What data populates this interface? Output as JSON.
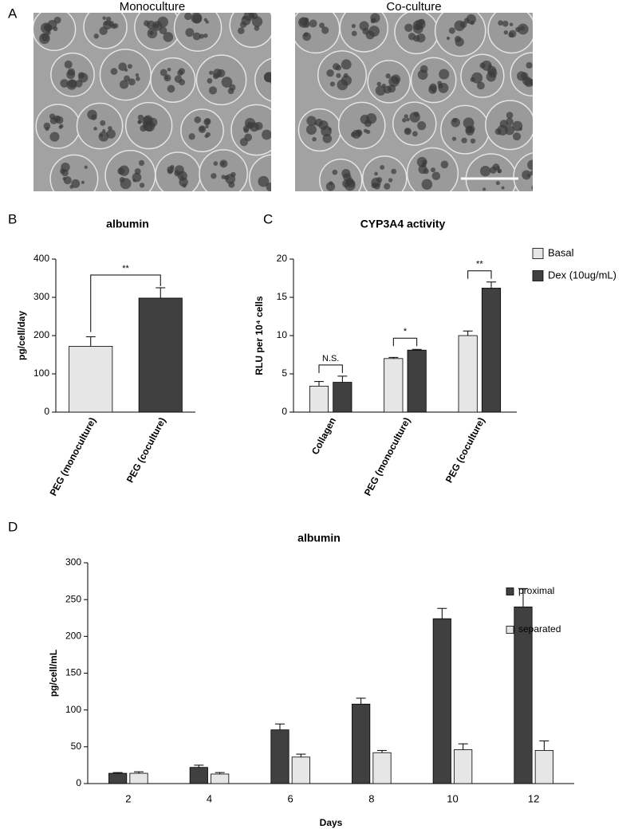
{
  "chart_data": [
    {
      "type": "image",
      "panel": "A",
      "labels": [
        "Monoculture",
        "Co-culture"
      ]
    },
    {
      "type": "bar",
      "panel": "B",
      "title": "albumin",
      "y_label": "pg/cell/day",
      "categories": [
        "PEG (monoculture)",
        "PEG (coculture)"
      ],
      "values": [
        172,
        298
      ],
      "errors": [
        25,
        27
      ],
      "colors": [
        "#e6e6e6",
        "#404040"
      ],
      "significance": "**",
      "ylim": [
        0,
        400
      ],
      "yticks": [
        0,
        100,
        200,
        300,
        400
      ]
    },
    {
      "type": "bar",
      "panel": "C",
      "title": "CYP3A4 activity",
      "y_label": "RLU per 10⁴ cells",
      "categories": [
        "Collagen",
        "PEG (monoculture)",
        "PEG (coculture)"
      ],
      "series": [
        {
          "name": "Basal",
          "color": "#e6e6e6",
          "values": [
            3.4,
            7.0,
            10.0
          ],
          "errors": [
            0.6,
            0.15,
            0.6
          ]
        },
        {
          "name": "Dex (10ug/mL)",
          "color": "#404040",
          "values": [
            3.9,
            8.1,
            16.2
          ],
          "errors": [
            0.8,
            0.1,
            0.8
          ]
        }
      ],
      "significance": [
        "N.S.",
        "*",
        "**"
      ],
      "ylim": [
        0,
        20
      ],
      "yticks": [
        0,
        5,
        10,
        15,
        20
      ]
    },
    {
      "type": "bar",
      "panel": "D",
      "title": "albumin",
      "x_label": "Days",
      "y_label": "pg/cell/mL",
      "categories": [
        "2",
        "4",
        "6",
        "8",
        "10",
        "12"
      ],
      "series": [
        {
          "name": "proximal",
          "color": "#404040",
          "values": [
            14,
            22,
            73,
            108,
            224,
            240
          ],
          "errors": [
            1,
            3,
            8,
            8,
            14,
            25
          ]
        },
        {
          "name": "separated",
          "color": "#e6e6e6",
          "values": [
            14,
            13,
            36,
            42,
            46,
            45
          ],
          "errors": [
            2,
            2,
            4,
            3,
            8,
            13
          ]
        }
      ],
      "ylim": [
        0,
        300
      ],
      "yticks": [
        0,
        50,
        100,
        150,
        200,
        250,
        300
      ]
    }
  ]
}
